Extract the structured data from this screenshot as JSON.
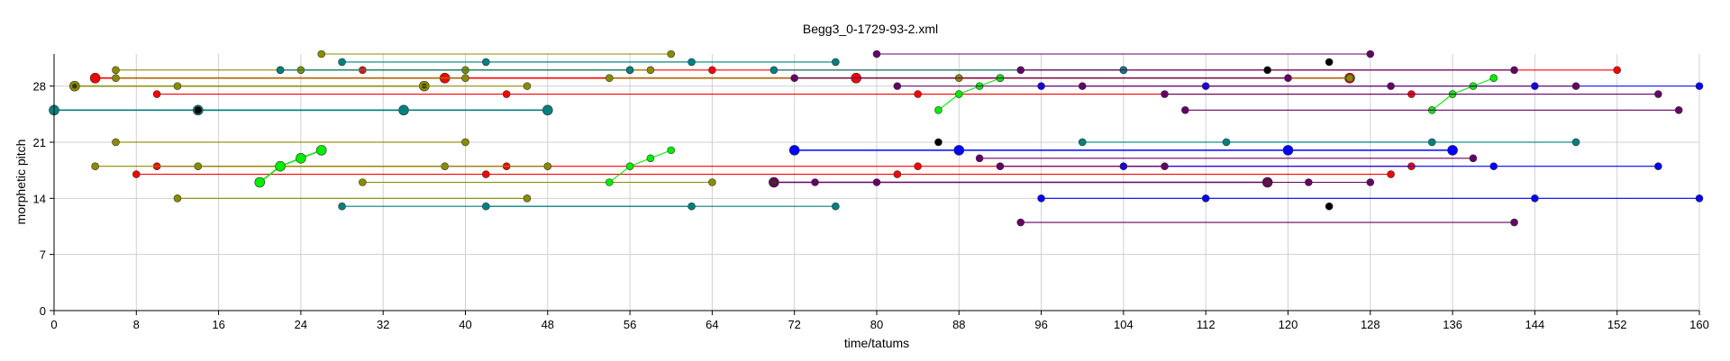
{
  "chart_data": {
    "type": "scatter",
    "title": "Begg3_0-1729-93-2.xml",
    "xlabel": "time/tatums",
    "ylabel": "morphetic pitch",
    "xlim": [
      0,
      160
    ],
    "ylim": [
      0,
      32
    ],
    "xticks": [
      0,
      8,
      16,
      24,
      32,
      40,
      48,
      56,
      64,
      72,
      80,
      88,
      96,
      104,
      112,
      120,
      128,
      136,
      144,
      152,
      160
    ],
    "yticks": [
      0,
      7,
      14,
      21,
      28
    ],
    "grid": true,
    "series": [
      {
        "color": "#ff0000",
        "points": [
          [
            4,
            29
          ],
          [
            38,
            29
          ],
          [
            78,
            29
          ],
          [
            126,
            29
          ]
        ],
        "big": true
      },
      {
        "color": "#ff0000",
        "points": [
          [
            30,
            30
          ],
          [
            64,
            30
          ],
          [
            104,
            30
          ],
          [
            152,
            30
          ]
        ]
      },
      {
        "color": "#ff0000",
        "points": [
          [
            10,
            27
          ],
          [
            44,
            27
          ],
          [
            84,
            27
          ],
          [
            132,
            27
          ]
        ]
      },
      {
        "color": "#ff0000",
        "points": [
          [
            8,
            17
          ],
          [
            42,
            17
          ],
          [
            82,
            17
          ],
          [
            130,
            17
          ]
        ]
      },
      {
        "color": "#ff0000",
        "points": [
          [
            10,
            18
          ],
          [
            44,
            18
          ],
          [
            84,
            18
          ],
          [
            132,
            18
          ]
        ]
      },
      {
        "color": "#8b8b00",
        "points": [
          [
            2,
            28
          ],
          [
            36,
            28
          ]
        ],
        "big": true,
        "dark_center": true
      },
      {
        "color": "#8b8b00",
        "points": [
          [
            6,
            29
          ],
          [
            40,
            29
          ]
        ]
      },
      {
        "color": "#8b8b00",
        "points": [
          [
            12,
            28
          ],
          [
            46,
            28
          ]
        ]
      },
      {
        "color": "#8b8b00",
        "points": [
          [
            26,
            32
          ],
          [
            60,
            32
          ]
        ]
      },
      {
        "color": "#8b8b00",
        "points": [
          [
            6,
            30
          ],
          [
            40,
            30
          ]
        ]
      },
      {
        "color": "#8b8b00",
        "points": [
          [
            22,
            30
          ],
          [
            56,
            30
          ]
        ]
      },
      {
        "color": "#8b8b00",
        "points": [
          [
            24,
            30
          ],
          [
            58,
            30
          ]
        ]
      },
      {
        "color": "#8b8b00",
        "points": [
          [
            6,
            21
          ],
          [
            40,
            21
          ]
        ]
      },
      {
        "color": "#8b8b00",
        "points": [
          [
            4,
            18
          ],
          [
            38,
            18
          ]
        ]
      },
      {
        "color": "#8b8b00",
        "points": [
          [
            14,
            18
          ],
          [
            48,
            18
          ]
        ]
      },
      {
        "color": "#8b8b00",
        "points": [
          [
            30,
            16
          ],
          [
            64,
            16
          ]
        ]
      },
      {
        "color": "#8b8b00",
        "points": [
          [
            12,
            14
          ],
          [
            46,
            14
          ]
        ]
      },
      {
        "color": "#8b8b00",
        "points": [
          [
            54,
            29
          ],
          [
            88,
            29
          ]
        ]
      },
      {
        "color": "#8b8b00",
        "points": [
          [
            92,
            29
          ],
          [
            126,
            29
          ]
        ]
      },
      {
        "color": "#008080",
        "points": [
          [
            0,
            25
          ],
          [
            34,
            25
          ]
        ],
        "big": true
      },
      {
        "color": "#008080",
        "points": [
          [
            14,
            25
          ],
          [
            48,
            25
          ]
        ],
        "big": true
      },
      {
        "color": "#008080",
        "points": [
          [
            28,
            31
          ],
          [
            62,
            31
          ]
        ]
      },
      {
        "color": "#008080",
        "points": [
          [
            42,
            31
          ],
          [
            76,
            31
          ]
        ]
      },
      {
        "color": "#008080",
        "points": [
          [
            28,
            13
          ],
          [
            62,
            13
          ]
        ]
      },
      {
        "color": "#008080",
        "points": [
          [
            42,
            13
          ],
          [
            76,
            13
          ]
        ]
      },
      {
        "color": "#008080",
        "points": [
          [
            22,
            30
          ],
          [
            56,
            30
          ]
        ]
      },
      {
        "color": "#008080",
        "points": [
          [
            70,
            30
          ],
          [
            104,
            30
          ]
        ]
      },
      {
        "color": "#008080",
        "points": [
          [
            100,
            21
          ],
          [
            134,
            21
          ]
        ]
      },
      {
        "color": "#008080",
        "points": [
          [
            114,
            21
          ],
          [
            148,
            21
          ]
        ]
      },
      {
        "color": "#00ee00",
        "points": [
          [
            20,
            16
          ],
          [
            22,
            18
          ],
          [
            24,
            19
          ],
          [
            26,
            20
          ]
        ],
        "big": true
      },
      {
        "color": "#00ee00",
        "points": [
          [
            54,
            16
          ],
          [
            56,
            18
          ],
          [
            58,
            19
          ],
          [
            60,
            20
          ]
        ]
      },
      {
        "color": "#00ee00",
        "points": [
          [
            86,
            25
          ],
          [
            88,
            27
          ],
          [
            90,
            28
          ],
          [
            92,
            29
          ]
        ]
      },
      {
        "color": "#00ee00",
        "points": [
          [
            134,
            25
          ],
          [
            136,
            27
          ],
          [
            138,
            28
          ],
          [
            140,
            29
          ]
        ]
      },
      {
        "color": "#0000ff",
        "points": [
          [
            72,
            20
          ],
          [
            88,
            20
          ],
          [
            120,
            20
          ],
          [
            136,
            20
          ]
        ],
        "big": true
      },
      {
        "color": "#0000ff",
        "points": [
          [
            96,
            28
          ],
          [
            112,
            28
          ],
          [
            144,
            28
          ],
          [
            160,
            28
          ]
        ]
      },
      {
        "color": "#0000ff",
        "points": [
          [
            96,
            14
          ],
          [
            112,
            14
          ],
          [
            144,
            14
          ],
          [
            160,
            14
          ]
        ]
      },
      {
        "color": "#0000ff",
        "points": [
          [
            104,
            18
          ],
          [
            140,
            18
          ],
          [
            156,
            18
          ]
        ]
      },
      {
        "color": "#660066",
        "points": [
          [
            80,
            32
          ],
          [
            128,
            32
          ]
        ]
      },
      {
        "color": "#660066",
        "points": [
          [
            94,
            30
          ],
          [
            142,
            30
          ]
        ]
      },
      {
        "color": "#660066",
        "points": [
          [
            72,
            29
          ],
          [
            120,
            29
          ]
        ]
      },
      {
        "color": "#660066",
        "points": [
          [
            82,
            28
          ],
          [
            130,
            28
          ]
        ]
      },
      {
        "color": "#660066",
        "points": [
          [
            100,
            28
          ],
          [
            148,
            28
          ]
        ]
      },
      {
        "color": "#660066",
        "points": [
          [
            108,
            27
          ],
          [
            156,
            27
          ]
        ]
      },
      {
        "color": "#660066",
        "points": [
          [
            110,
            25
          ],
          [
            158,
            25
          ]
        ]
      },
      {
        "color": "#660066",
        "points": [
          [
            90,
            19
          ],
          [
            138,
            19
          ]
        ]
      },
      {
        "color": "#660066",
        "points": [
          [
            92,
            18
          ],
          [
            108,
            18
          ]
        ]
      },
      {
        "color": "#660066",
        "points": [
          [
            70,
            16
          ],
          [
            118,
            16
          ]
        ],
        "big": true,
        "dark_center": true
      },
      {
        "color": "#660066",
        "points": [
          [
            74,
            16
          ],
          [
            122,
            16
          ]
        ]
      },
      {
        "color": "#660066",
        "points": [
          [
            80,
            16
          ],
          [
            128,
            16
          ]
        ]
      },
      {
        "color": "#660066",
        "points": [
          [
            94,
            11
          ],
          [
            142,
            11
          ]
        ]
      },
      {
        "color": "#000000",
        "points": [
          [
            14,
            25
          ]
        ]
      },
      {
        "color": "#000000",
        "points": [
          [
            86,
            21
          ]
        ]
      },
      {
        "color": "#000000",
        "points": [
          [
            118,
            30
          ]
        ]
      },
      {
        "color": "#000000",
        "points": [
          [
            124,
            31
          ]
        ]
      },
      {
        "color": "#000000",
        "points": [
          [
            124,
            13
          ]
        ]
      }
    ]
  }
}
